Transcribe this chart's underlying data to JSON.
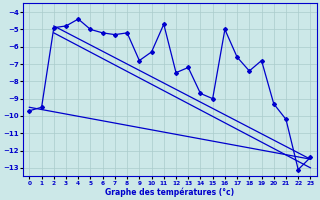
{
  "x": [
    0,
    1,
    2,
    3,
    4,
    5,
    6,
    7,
    8,
    9,
    10,
    11,
    12,
    13,
    14,
    15,
    16,
    17,
    18,
    19,
    20,
    21,
    22,
    23
  ],
  "y": [
    -9.7,
    -9.5,
    -4.9,
    -4.8,
    -4.4,
    -5.0,
    -5.2,
    -5.3,
    -5.2,
    -6.8,
    -6.3,
    -4.7,
    -7.5,
    -7.2,
    -8.7,
    -9.0,
    -5.0,
    -6.6,
    -7.4,
    -6.8,
    -9.3,
    -10.2,
    -13.1,
    -12.4
  ],
  "trend1_x": [
    2,
    23
  ],
  "trend1_y": [
    -4.8,
    -12.5
  ],
  "trend2_x": [
    2,
    23
  ],
  "trend2_y": [
    -5.2,
    -13.0
  ],
  "trend3_x": [
    0,
    23
  ],
  "trend3_y": [
    -9.5,
    -12.5
  ],
  "xlabel": "Graphe des températures (°c)",
  "xlim": [
    -0.5,
    23.5
  ],
  "ylim": [
    -13.5,
    -3.5
  ],
  "yticks": [
    -13,
    -12,
    -11,
    -10,
    -9,
    -8,
    -7,
    -6,
    -5,
    -4
  ],
  "xticks": [
    0,
    1,
    2,
    3,
    4,
    5,
    6,
    7,
    8,
    9,
    10,
    11,
    12,
    13,
    14,
    15,
    16,
    17,
    18,
    19,
    20,
    21,
    22,
    23
  ],
  "line_color": "#0000cc",
  "bg_color": "#cce8e8",
  "grid_color": "#aacccc"
}
